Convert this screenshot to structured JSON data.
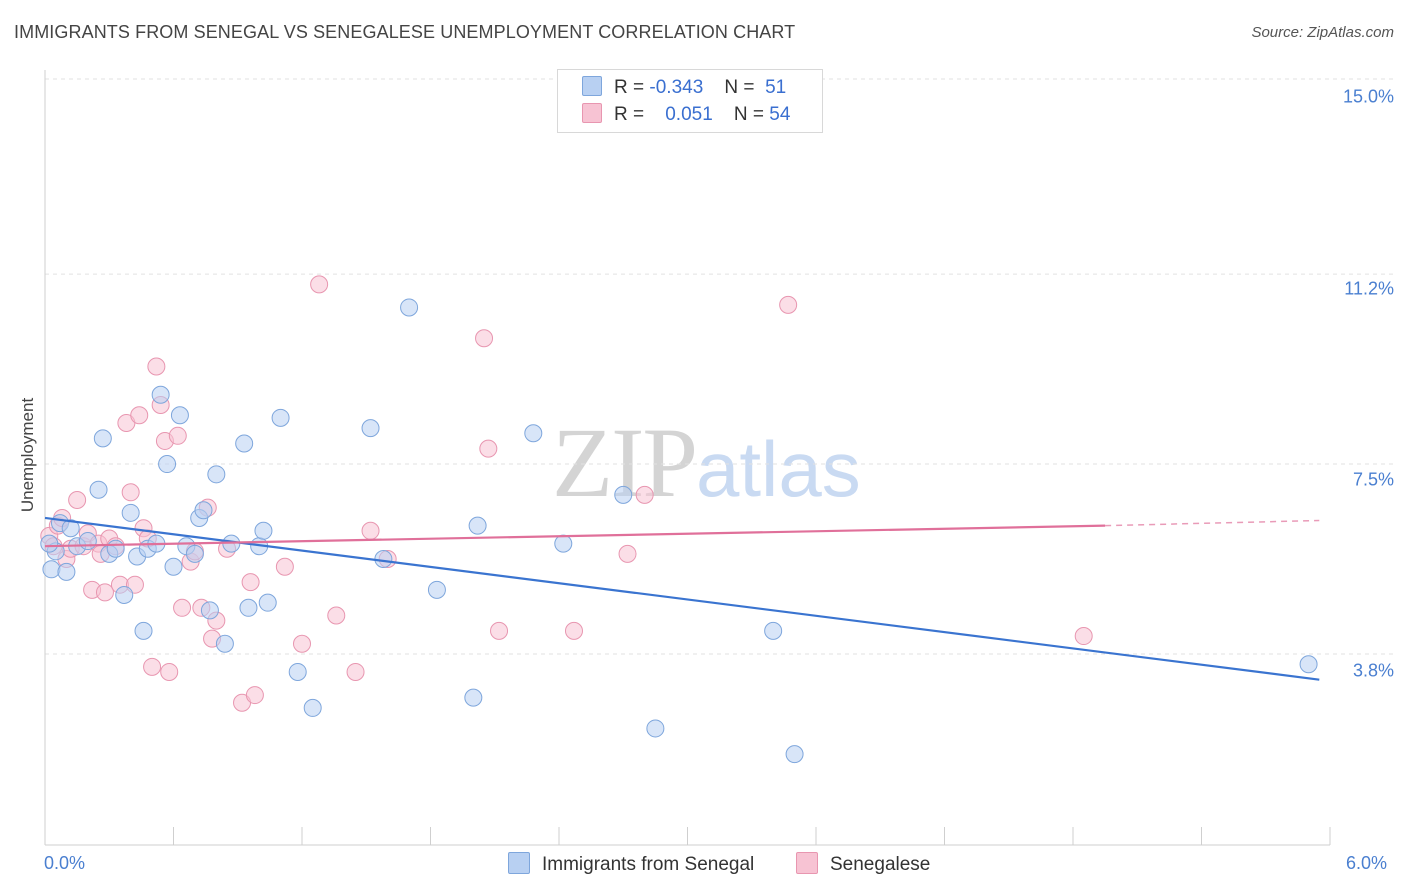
{
  "title": "IMMIGRANTS FROM SENEGAL VS SENEGALESE UNEMPLOYMENT CORRELATION CHART",
  "source": "Source: ZipAtlas.com",
  "watermark": {
    "zip": "ZIP",
    "atlas": "atlas"
  },
  "legend": {
    "blue": {
      "r_label": "R =",
      "r_value": "-0.343",
      "n_label": "N =",
      "n_value": "51"
    },
    "pink": {
      "r_label": "R =",
      "r_value": "0.051",
      "n_label": "N =",
      "n_value": "54"
    }
  },
  "colors": {
    "blue_fill": "#b8d0f2",
    "blue_stroke": "#7ea6dc",
    "blue_line": "#3a74d0",
    "pink_fill": "#f7c3d3",
    "pink_stroke": "#e896b0",
    "pink_line": "#e0709a",
    "axis_text": "#4a7fd0",
    "grid": "#e2e2e2"
  },
  "chart_data": {
    "type": "scatter",
    "title": "IMMIGRANTS FROM SENEGAL VS SENEGALESE UNEMPLOYMENT CORRELATION CHART",
    "xlabel": "",
    "ylabel": "Unemployment",
    "xlim": [
      0,
      6
    ],
    "ylim": [
      0,
      15.8
    ],
    "x_tick_labels": [
      "0.0%",
      "6.0%"
    ],
    "y_ticks": [
      3.8,
      7.5,
      11.2,
      15.0
    ],
    "y_tick_labels": [
      "3.8%",
      "7.5%",
      "11.2%",
      "15.0%"
    ],
    "grid": true,
    "legend_position": "top-center",
    "series": [
      {
        "name": "Immigrants from Senegal",
        "color": "#b8d0f2",
        "trend": {
          "x": [
            0.0,
            5.95
          ],
          "y": [
            6.45,
            3.3
          ]
        },
        "points": [
          [
            0.03,
            5.45
          ],
          [
            0.05,
            5.8
          ],
          [
            0.07,
            6.35
          ],
          [
            0.1,
            5.4
          ],
          [
            0.12,
            6.25
          ],
          [
            0.15,
            5.9
          ],
          [
            0.2,
            6.0
          ],
          [
            0.25,
            7.0
          ],
          [
            0.27,
            8.0
          ],
          [
            0.3,
            5.75
          ],
          [
            0.33,
            5.85
          ],
          [
            0.37,
            4.95
          ],
          [
            0.4,
            6.55
          ],
          [
            0.43,
            5.7
          ],
          [
            0.46,
            4.25
          ],
          [
            0.48,
            5.85
          ],
          [
            0.52,
            5.95
          ],
          [
            0.54,
            8.85
          ],
          [
            0.57,
            7.5
          ],
          [
            0.6,
            5.5
          ],
          [
            0.63,
            8.45
          ],
          [
            0.66,
            5.9
          ],
          [
            0.7,
            5.75
          ],
          [
            0.72,
            6.45
          ],
          [
            0.74,
            6.6
          ],
          [
            0.77,
            4.65
          ],
          [
            0.8,
            7.3
          ],
          [
            0.84,
            4.0
          ],
          [
            0.87,
            5.95
          ],
          [
            0.93,
            7.9
          ],
          [
            0.95,
            4.7
          ],
          [
            1.0,
            5.9
          ],
          [
            1.02,
            6.2
          ],
          [
            1.04,
            4.8
          ],
          [
            1.1,
            8.4
          ],
          [
            1.18,
            3.45
          ],
          [
            1.25,
            2.75
          ],
          [
            1.52,
            8.2
          ],
          [
            1.58,
            5.65
          ],
          [
            1.7,
            10.55
          ],
          [
            1.83,
            5.05
          ],
          [
            2.0,
            2.95
          ],
          [
            2.02,
            6.3
          ],
          [
            2.28,
            8.1
          ],
          [
            2.42,
            5.95
          ],
          [
            2.7,
            6.9
          ],
          [
            2.85,
            2.35
          ],
          [
            3.4,
            4.25
          ],
          [
            3.5,
            1.85
          ],
          [
            5.9,
            3.6
          ],
          [
            0.02,
            5.95
          ]
        ]
      },
      {
        "name": "Senegalese",
        "color": "#f7c3d3",
        "trend": {
          "x": [
            0.0,
            4.95
          ],
          "y": [
            5.9,
            6.3
          ]
        },
        "trend_dashed": {
          "x": [
            4.95,
            5.95
          ],
          "y": [
            6.3,
            6.4
          ]
        },
        "points": [
          [
            0.02,
            6.1
          ],
          [
            0.04,
            5.9
          ],
          [
            0.06,
            6.3
          ],
          [
            0.08,
            6.45
          ],
          [
            0.1,
            5.65
          ],
          [
            0.12,
            5.85
          ],
          [
            0.15,
            6.8
          ],
          [
            0.18,
            5.9
          ],
          [
            0.2,
            6.15
          ],
          [
            0.22,
            5.05
          ],
          [
            0.25,
            5.95
          ],
          [
            0.26,
            5.75
          ],
          [
            0.28,
            5.0
          ],
          [
            0.3,
            6.05
          ],
          [
            0.33,
            5.9
          ],
          [
            0.35,
            5.15
          ],
          [
            0.38,
            8.3
          ],
          [
            0.4,
            6.95
          ],
          [
            0.42,
            5.15
          ],
          [
            0.44,
            8.45
          ],
          [
            0.46,
            6.25
          ],
          [
            0.48,
            6.05
          ],
          [
            0.5,
            3.55
          ],
          [
            0.52,
            9.4
          ],
          [
            0.54,
            8.65
          ],
          [
            0.56,
            7.95
          ],
          [
            0.58,
            3.45
          ],
          [
            0.62,
            8.05
          ],
          [
            0.64,
            4.7
          ],
          [
            0.68,
            5.6
          ],
          [
            0.7,
            5.8
          ],
          [
            0.73,
            4.7
          ],
          [
            0.76,
            6.65
          ],
          [
            0.78,
            4.1
          ],
          [
            0.8,
            4.45
          ],
          [
            0.85,
            5.85
          ],
          [
            0.92,
            2.85
          ],
          [
            0.96,
            5.2
          ],
          [
            0.98,
            3.0
          ],
          [
            1.12,
            5.5
          ],
          [
            1.2,
            4.0
          ],
          [
            1.28,
            11.0
          ],
          [
            1.36,
            4.55
          ],
          [
            1.45,
            3.45
          ],
          [
            1.52,
            6.2
          ],
          [
            1.6,
            5.65
          ],
          [
            2.05,
            9.95
          ],
          [
            2.07,
            7.8
          ],
          [
            2.12,
            4.25
          ],
          [
            2.47,
            4.25
          ],
          [
            2.72,
            5.75
          ],
          [
            2.8,
            6.9
          ],
          [
            3.47,
            10.6
          ],
          [
            4.85,
            4.15
          ]
        ]
      }
    ]
  }
}
